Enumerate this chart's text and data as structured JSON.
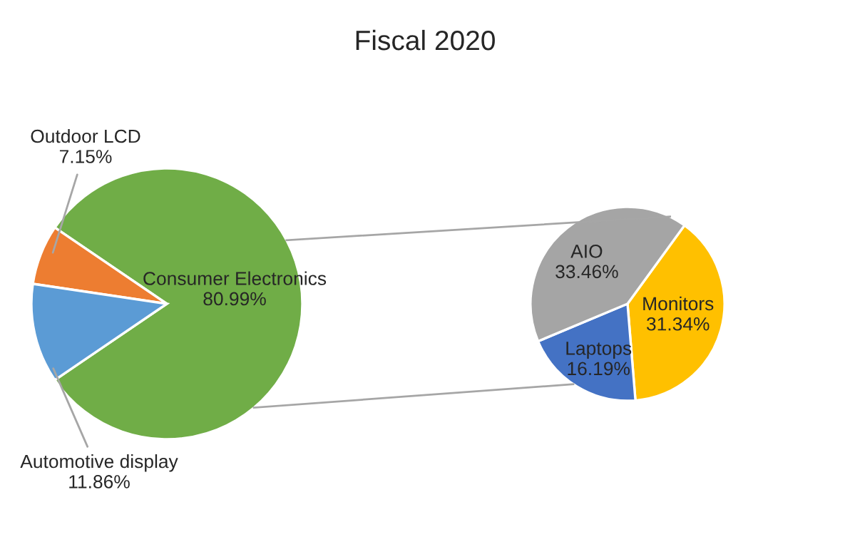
{
  "chart_data": [
    {
      "type": "pie",
      "title": "Fiscal 2020",
      "categories": [
        "Consumer Electronics",
        "Outdoor LCD",
        "Automotive display"
      ],
      "values": [
        80.99,
        7.15,
        11.86
      ],
      "colors": [
        "#70ad47",
        "#ed7d31",
        "#5b9bd5"
      ],
      "value_labels": [
        "80.99%",
        "7.15%",
        "11.86%"
      ]
    },
    {
      "type": "pie",
      "categories": [
        "Monitors",
        "Laptops",
        "AIO"
      ],
      "values": [
        31.34,
        16.19,
        33.46
      ],
      "colors": [
        "#ffc000",
        "#4472c4",
        "#a5a5a5"
      ],
      "value_labels": [
        "31.34%",
        "16.19%",
        "33.46%"
      ]
    }
  ]
}
